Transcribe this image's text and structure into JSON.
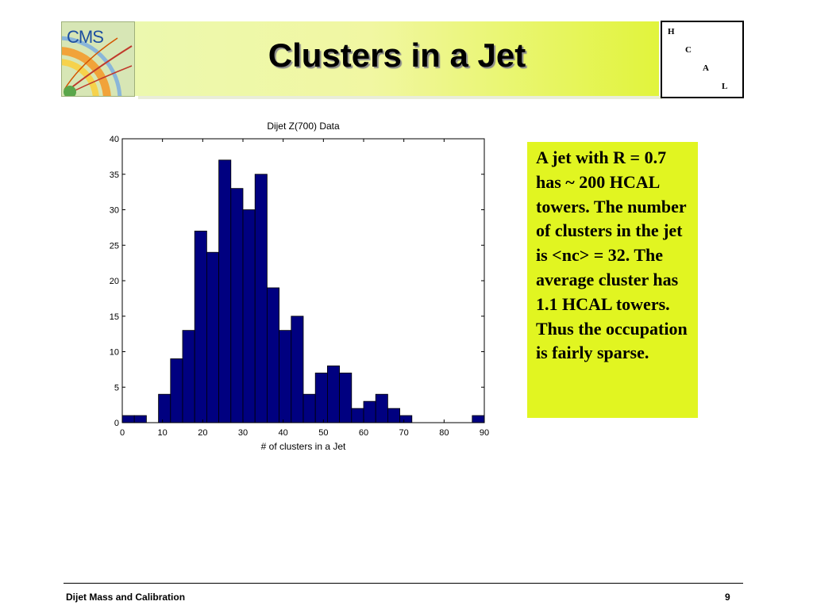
{
  "header": {
    "title": "Clusters in a Jet",
    "logo_text": "CMS",
    "hcal_letters": [
      "H",
      "C",
      "A",
      "L"
    ]
  },
  "chart_data": {
    "type": "bar",
    "title": "Dijet Z(700) Data",
    "xlabel": "# of clusters in a Jet",
    "ylabel": "",
    "xlim": [
      0,
      90
    ],
    "ylim": [
      0,
      40
    ],
    "xticks": [
      0,
      10,
      20,
      30,
      40,
      50,
      60,
      70,
      80,
      90
    ],
    "yticks": [
      0,
      5,
      10,
      15,
      20,
      25,
      30,
      35,
      40
    ],
    "bin_width": 3,
    "bins": [
      {
        "x": 0,
        "value": 1
      },
      {
        "x": 3,
        "value": 1
      },
      {
        "x": 9,
        "value": 4
      },
      {
        "x": 12,
        "value": 9
      },
      {
        "x": 15,
        "value": 13
      },
      {
        "x": 18,
        "value": 27
      },
      {
        "x": 21,
        "value": 24
      },
      {
        "x": 24,
        "value": 37
      },
      {
        "x": 27,
        "value": 33
      },
      {
        "x": 30,
        "value": 30
      },
      {
        "x": 33,
        "value": 35
      },
      {
        "x": 36,
        "value": 19
      },
      {
        "x": 39,
        "value": 13
      },
      {
        "x": 42,
        "value": 15
      },
      {
        "x": 45,
        "value": 4
      },
      {
        "x": 48,
        "value": 7
      },
      {
        "x": 51,
        "value": 8
      },
      {
        "x": 54,
        "value": 7
      },
      {
        "x": 57,
        "value": 2
      },
      {
        "x": 60,
        "value": 3
      },
      {
        "x": 63,
        "value": 4
      },
      {
        "x": 66,
        "value": 2
      },
      {
        "x": 69,
        "value": 1
      },
      {
        "x": 87,
        "value": 1
      }
    ],
    "bar_color": "#000080",
    "grid": false
  },
  "panel": {
    "text": "A jet with R = 0.7 has ~ 200 HCAL towers. The number of clusters in the jet is <nc> = 32. The average cluster has 1.1 HCAL towers. Thus the occupation is fairly sparse.",
    "background": "#e1f521"
  },
  "footer": {
    "left": "Dijet Mass and Calibration",
    "page_number": "9"
  }
}
